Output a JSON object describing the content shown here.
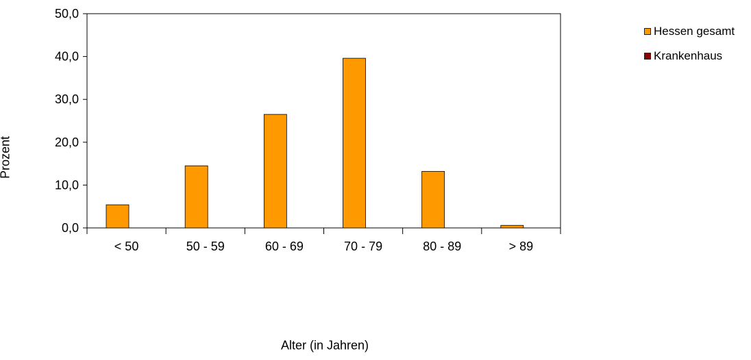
{
  "chart_data": {
    "type": "bar",
    "categories": [
      "< 50",
      "50 - 59",
      "60 - 69",
      "70 - 79",
      "80 - 89",
      "> 89"
    ],
    "series": [
      {
        "name": "Hessen gesamt",
        "color": "#FF9900",
        "values": [
          5.4,
          14.5,
          26.5,
          39.6,
          13.2,
          0.6
        ]
      },
      {
        "name": "Krankenhaus",
        "color": "#8B0000",
        "values": [
          0,
          0,
          0,
          0,
          0,
          0
        ]
      }
    ],
    "xlabel": "Alter (in Jahren)",
    "ylabel": "Prozent",
    "ylim": [
      0,
      50
    ],
    "yticks": [
      "0,0",
      "10,0",
      "20,0",
      "30,0",
      "40,0",
      "50,0"
    ],
    "grid": false,
    "legend_position": "right"
  }
}
